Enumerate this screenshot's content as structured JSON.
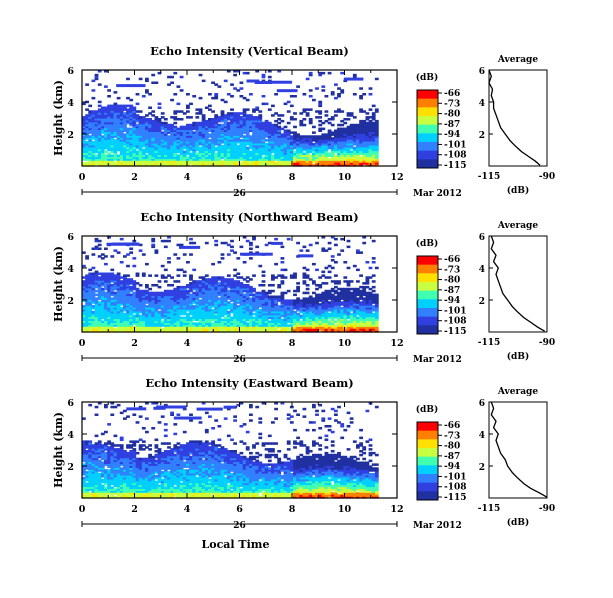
{
  "panels": [
    {
      "title": "Echo Intensity (Vertical Beam)",
      "beam": "vertical",
      "avg_profile": [
        [
          -93,
          0.05
        ],
        [
          -95,
          0.3
        ],
        [
          -98,
          0.6
        ],
        [
          -101,
          0.9
        ],
        [
          -104,
          1.3
        ],
        [
          -106,
          1.6
        ],
        [
          -108,
          2.0
        ],
        [
          -110,
          2.4
        ],
        [
          -111,
          2.8
        ],
        [
          -112,
          3.2
        ],
        [
          -113,
          3.6
        ],
        [
          -113,
          4.0
        ],
        [
          -114,
          4.4
        ],
        [
          -113.5,
          4.8
        ],
        [
          -115,
          5.2
        ],
        [
          -114,
          5.6
        ],
        [
          -115,
          6.0
        ]
      ]
    },
    {
      "title": "Echo Intensity (Northward Beam)",
      "beam": "northward",
      "avg_profile": [
        [
          -91,
          0.05
        ],
        [
          -94,
          0.3
        ],
        [
          -97,
          0.6
        ],
        [
          -100,
          0.9
        ],
        [
          -103,
          1.3
        ],
        [
          -105,
          1.6
        ],
        [
          -107,
          2.0
        ],
        [
          -109,
          2.4
        ],
        [
          -110,
          2.8
        ],
        [
          -111,
          3.2
        ],
        [
          -112,
          3.6
        ],
        [
          -111,
          4.0
        ],
        [
          -113,
          4.4
        ],
        [
          -112,
          4.8
        ],
        [
          -114,
          5.2
        ],
        [
          -113,
          5.6
        ],
        [
          -114,
          6.0
        ]
      ]
    },
    {
      "title": "Echo Intensity (Eastward Beam)",
      "beam": "eastward",
      "avg_profile": [
        [
          -90,
          0.05
        ],
        [
          -93,
          0.3
        ],
        [
          -97,
          0.6
        ],
        [
          -100,
          0.9
        ],
        [
          -103,
          1.3
        ],
        [
          -105,
          1.6
        ],
        [
          -107,
          2.0
        ],
        [
          -108,
          2.4
        ],
        [
          -110,
          2.8
        ],
        [
          -111,
          3.2
        ],
        [
          -112,
          3.6
        ],
        [
          -111,
          4.0
        ],
        [
          -113,
          4.4
        ],
        [
          -112,
          4.8
        ],
        [
          -114,
          5.2
        ],
        [
          -113,
          5.6
        ],
        [
          -114,
          6.0
        ]
      ]
    }
  ],
  "chart_data": {
    "type": "heatmap",
    "x": {
      "label": "Local Time",
      "range": [
        0,
        12
      ],
      "ticks": [
        "0",
        "2",
        "4",
        "6",
        "8",
        "10",
        "12"
      ]
    },
    "y": {
      "label": "Height (km)",
      "range": [
        0,
        6
      ],
      "ticks": [
        "2",
        "4",
        "6"
      ]
    },
    "date_axis": {
      "day": "26",
      "month_year": "Mar 2012"
    },
    "colorbar": {
      "unit": "(dB)",
      "ticks": [
        "-66",
        "-73",
        "-80",
        "-87",
        "-94",
        "-101",
        "-108",
        "-115"
      ],
      "colors": [
        "#ff0000",
        "#ff8000",
        "#ffe000",
        "#c8ff40",
        "#40ffb0",
        "#00d0ff",
        "#3080ff",
        "#3040e0",
        "#2030a0"
      ]
    },
    "average": {
      "title": "Average",
      "xlabel": "(dB)",
      "xlim": [
        -115,
        -90
      ],
      "xticks": [
        "-115",
        "-90"
      ],
      "yticks": [
        "2",
        "4",
        "6"
      ]
    },
    "data_end_hour": 11.2
  }
}
